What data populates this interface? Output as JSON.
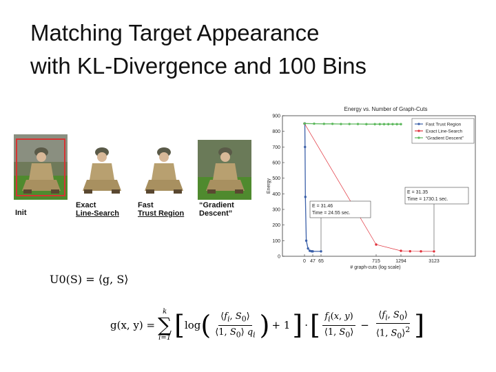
{
  "slide": {
    "title_line1": "Matching Target Appearance",
    "title_line2": "with KL-Divergence and 100 Bins"
  },
  "thumbnails": [
    {
      "line1": "Init",
      "line2": ""
    },
    {
      "line1": "Exact",
      "line2": "Line-Search"
    },
    {
      "line1": "Fast",
      "line2": "Trust Region"
    },
    {
      "line1": "“Gradient",
      "line2": "Descent”"
    }
  ],
  "formula": {
    "u0": "U0(S) = ⟨g, S⟩",
    "g_lhs": "g(x, y) =",
    "sum_top": "k",
    "sum_bottom": "i=1",
    "log": "log",
    "plus1": "+ 1",
    "dot": "·",
    "minus": "−"
  },
  "colors": {
    "fast": "#3a5fa8",
    "exact": "#e0303a",
    "gradient": "#5cb85c",
    "frame": "#d63333"
  },
  "chart_data": {
    "type": "line",
    "title": "Energy vs. Number of Graph-Cuts",
    "xlabel": "# graph-cuts (log scale)",
    "ylabel": "Energy",
    "ylim": [
      0,
      900
    ],
    "yticks": [
      "0",
      "100",
      "200",
      "300",
      "400",
      "500",
      "600",
      "700",
      "800",
      "900"
    ],
    "xticks": [
      "0",
      "47",
      "65",
      "715",
      "1294",
      "3123"
    ],
    "legend_position": "top-right",
    "series": [
      {
        "name": "Fast Trust Region",
        "x": [
          0,
          1,
          2,
          3,
          5,
          10,
          20,
          30,
          40,
          47,
          65
        ],
        "y": [
          850,
          850,
          850,
          700,
          380,
          100,
          50,
          35,
          32,
          31.46,
          31.46
        ]
      },
      {
        "name": "Exact Line-Search",
        "x": [
          0,
          715,
          1294,
          1800,
          2400,
          3123
        ],
        "y": [
          850,
          75,
          35,
          32,
          31.5,
          31.35
        ]
      },
      {
        "name": "“Gradient Descent”",
        "x": [
          0,
          50,
          100,
          200,
          300,
          400,
          500,
          600,
          700,
          800,
          900,
          1000,
          1100,
          1200,
          1294
        ],
        "y": [
          850,
          849,
          848,
          848,
          847,
          847,
          847,
          846,
          846,
          846,
          846,
          846,
          846,
          846,
          846
        ]
      }
    ],
    "annotations": [
      {
        "line1": "E = 31.46",
        "line2": "Time = 24.55 sec."
      },
      {
        "line1": "E = 31.35",
        "line2": "Time = 1730.1 sec."
      }
    ]
  }
}
